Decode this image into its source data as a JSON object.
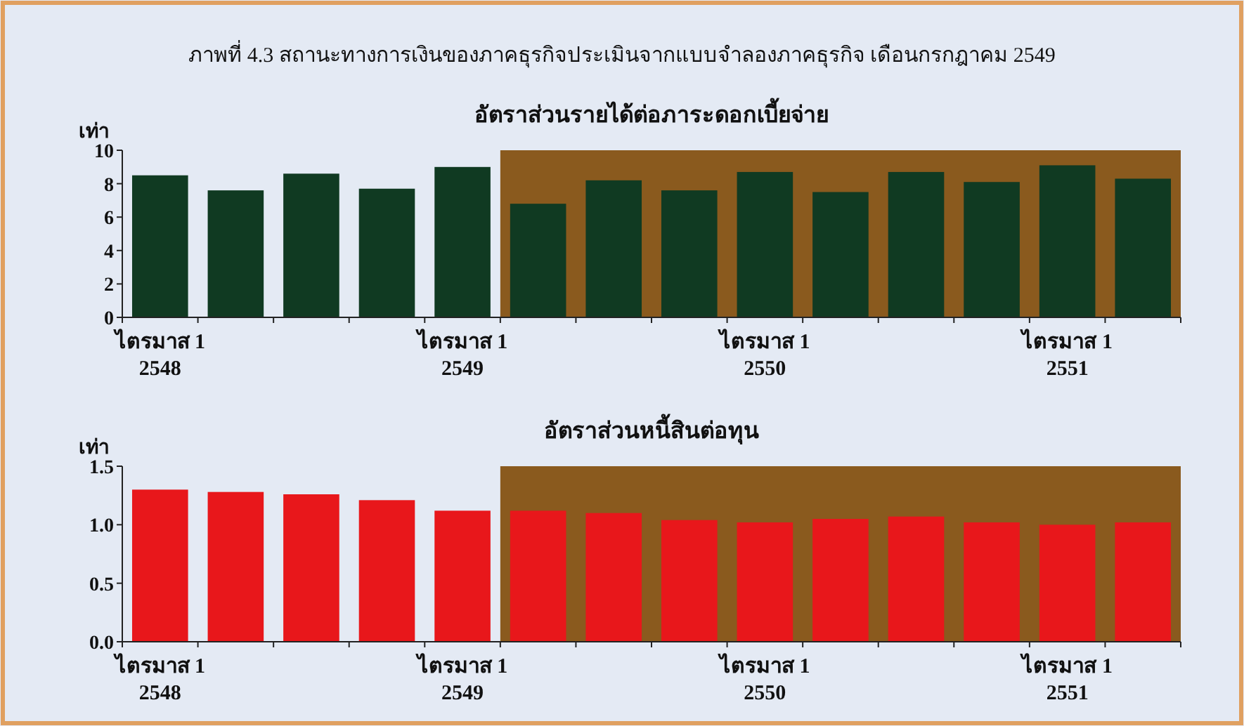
{
  "chart_data": [
    {
      "type": "bar",
      "title": "อัตราส่วนรายได้ต่อภาระดอกเบี้ยจ่าย",
      "ylabel": "เท่า",
      "annotations": [
        "ภาพที่ 4.3 สถานะทางการเงินของภาคธุรกิจประเมินจากแบบจำลองภาคธุรกิจ เดือนกรกฎาคม 2549"
      ],
      "categories": [
        "ไตรมาส 1\n2548",
        null,
        null,
        null,
        "ไตรมาส 1\n2549",
        null,
        null,
        null,
        "ไตรมาส 1\n2550",
        null,
        null,
        null,
        "ไตรมาส 1\n2551",
        null
      ],
      "values": [
        8.5,
        7.6,
        8.6,
        7.7,
        9.0,
        6.8,
        8.2,
        7.6,
        8.7,
        7.5,
        8.7,
        8.1,
        9.1,
        8.3
      ],
      "color": "#103a22",
      "ylim": [
        0,
        10
      ],
      "yticks": [
        0,
        2,
        4,
        6,
        8,
        10
      ],
      "grid": false
    },
    {
      "type": "bar",
      "title": "อัตราส่วนหนี้สินต่อทุน",
      "ylabel": "เท่า",
      "categories": [
        "ไตรมาส 1\n2548",
        null,
        null,
        null,
        "ไตรมาส 1\n2549",
        null,
        null,
        null,
        "ไตรมาส 1\n2550",
        null,
        null,
        null,
        "ไตรมาส 1\n2551",
        null
      ],
      "values": [
        1.3,
        1.28,
        1.26,
        1.21,
        1.12,
        1.12,
        1.1,
        1.04,
        1.02,
        1.05,
        1.07,
        1.02,
        1.0,
        1.02
      ],
      "color": "#e8171b",
      "ylim": [
        0,
        1.5
      ],
      "yticks": [
        {
          "value": 0,
          "label": "0.0"
        },
        {
          "value": 0.5,
          "label": "0.5"
        },
        {
          "value": 1,
          "label": "1.0"
        },
        1.5
      ],
      "grid": false
    }
  ]
}
